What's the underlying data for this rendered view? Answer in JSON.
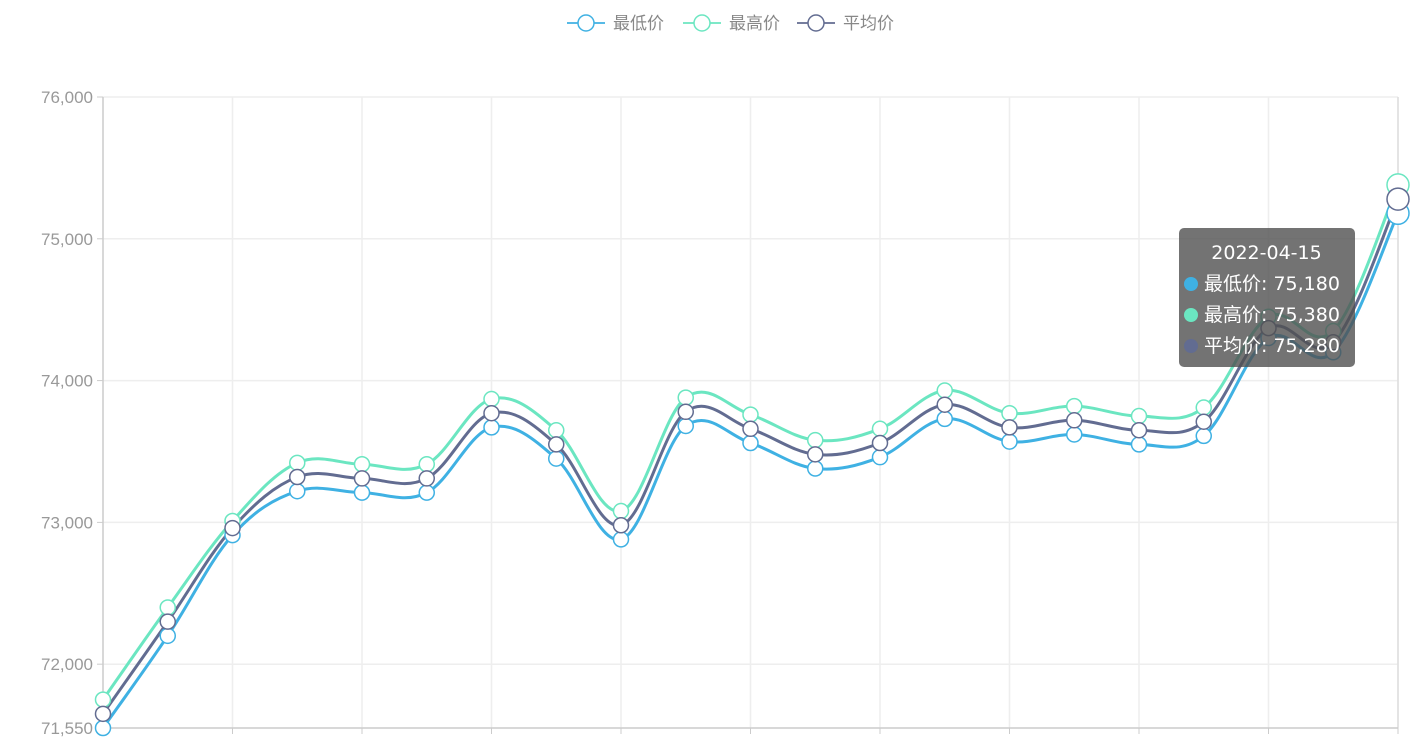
{
  "chart_data": {
    "type": "line",
    "smooth": true,
    "title": "",
    "xlabel": "",
    "ylabel": "",
    "ylim": [
      71550,
      76000
    ],
    "y_ticks": [
      {
        "value": 71550,
        "label": "71,550"
      },
      {
        "value": 72000,
        "label": "72,000"
      },
      {
        "value": 73000,
        "label": "73,000"
      },
      {
        "value": 74000,
        "label": "74,000"
      },
      {
        "value": 75000,
        "label": "75,000"
      },
      {
        "value": 76000,
        "label": "76,000"
      }
    ],
    "grid": true,
    "legend_position": "top-center",
    "x_labels_visible": false,
    "categories": [
      "",
      "",
      "",
      "",
      "",
      "",
      "",
      "",
      "",
      "",
      "",
      "",
      "",
      "",
      "",
      "",
      "",
      "",
      "",
      "",
      "2022-04-15"
    ],
    "series": [
      {
        "name": "最低价",
        "color": "#3fb1e3",
        "values": [
          71550,
          72200,
          72910,
          73220,
          73210,
          73210,
          73670,
          73450,
          72880,
          73680,
          73560,
          73380,
          73460,
          73730,
          73570,
          73620,
          73550,
          73610,
          74300,
          74200,
          75180
        ]
      },
      {
        "name": "最高价",
        "color": "#6be6c1",
        "values": [
          71750,
          72400,
          73010,
          73420,
          73410,
          73410,
          73870,
          73650,
          73080,
          73880,
          73760,
          73580,
          73660,
          73930,
          73770,
          73820,
          73750,
          73810,
          74450,
          74350,
          75380
        ]
      },
      {
        "name": "平均价",
        "color": "#626c91",
        "values": [
          71650,
          72300,
          72960,
          73320,
          73310,
          73310,
          73770,
          73550,
          72980,
          73780,
          73660,
          73480,
          73560,
          73830,
          73670,
          73720,
          73650,
          73710,
          74370,
          74270,
          75280
        ]
      }
    ],
    "highlight_index": 20
  },
  "tooltip": {
    "title": "2022-04-15",
    "rows": [
      {
        "label": "最低价: 75,180",
        "color": "#3fb1e3"
      },
      {
        "label": "最高价: 75,380",
        "color": "#6be6c1"
      },
      {
        "label": "平均价: 75,280",
        "color": "#626c91"
      }
    ]
  }
}
